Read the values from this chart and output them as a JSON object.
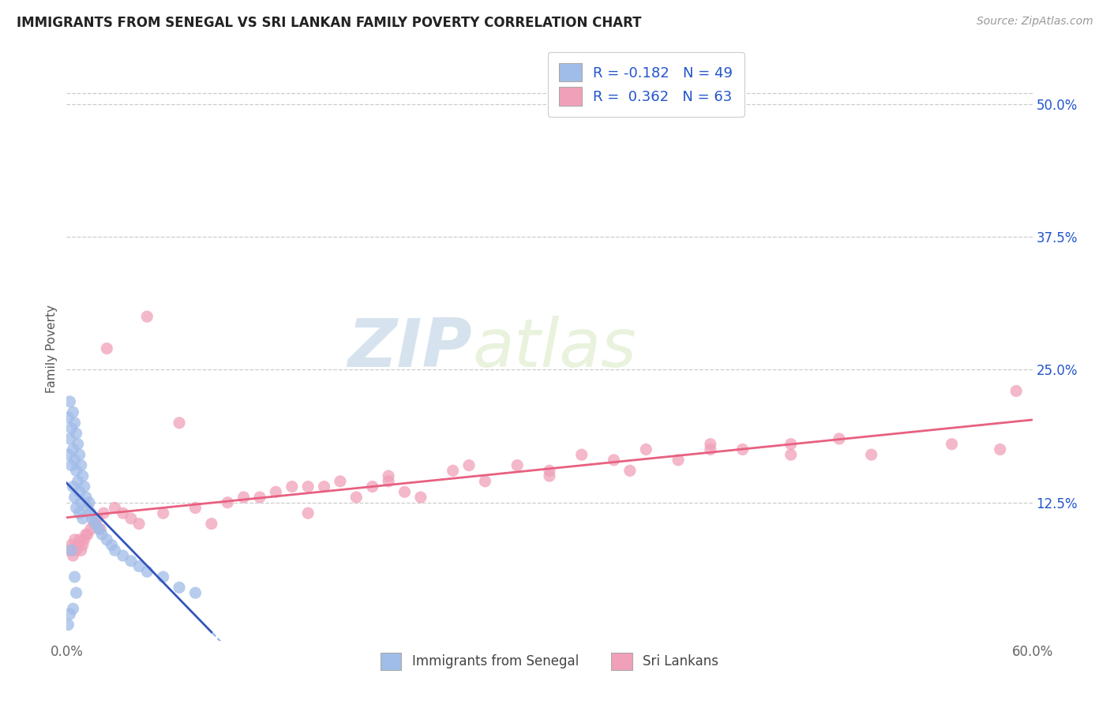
{
  "title": "IMMIGRANTS FROM SENEGAL VS SRI LANKAN FAMILY POVERTY CORRELATION CHART",
  "source": "Source: ZipAtlas.com",
  "ylabel": "Family Poverty",
  "right_ytick_labels": [
    "12.5%",
    "25.0%",
    "37.5%",
    "50.0%"
  ],
  "right_ytick_values": [
    0.125,
    0.25,
    0.375,
    0.5
  ],
  "xlim": [
    0.0,
    0.6
  ],
  "ylim": [
    -0.005,
    0.545
  ],
  "color_blue_fill": "#a0bce8",
  "color_pink_fill": "#f0a0b8",
  "color_blue_text": "#2255cc",
  "color_grid": "#cccccc",
  "trend_blue_solid_color": "#3355bb",
  "trend_blue_dash_color": "#8aafe8",
  "trend_pink_color": "#e86080",
  "legend_label_1": "Immigrants from Senegal",
  "legend_label_2": "Sri Lankans",
  "R1": "-0.182",
  "N1": "49",
  "R2": "0.362",
  "N2": "63",
  "blue_x": [
    0.001,
    0.001,
    0.002,
    0.002,
    0.003,
    0.003,
    0.004,
    0.004,
    0.004,
    0.005,
    0.005,
    0.005,
    0.006,
    0.006,
    0.006,
    0.007,
    0.007,
    0.008,
    0.008,
    0.008,
    0.009,
    0.009,
    0.01,
    0.01,
    0.011,
    0.012,
    0.013,
    0.014,
    0.015,
    0.016,
    0.018,
    0.02,
    0.022,
    0.025,
    0.028,
    0.03,
    0.035,
    0.04,
    0.045,
    0.05,
    0.06,
    0.07,
    0.08,
    0.003,
    0.005,
    0.006,
    0.004,
    0.002,
    0.001
  ],
  "blue_y": [
    0.205,
    0.17,
    0.22,
    0.185,
    0.195,
    0.16,
    0.21,
    0.175,
    0.14,
    0.2,
    0.165,
    0.13,
    0.19,
    0.155,
    0.12,
    0.18,
    0.145,
    0.17,
    0.135,
    0.115,
    0.16,
    0.125,
    0.15,
    0.11,
    0.14,
    0.13,
    0.12,
    0.125,
    0.115,
    0.11,
    0.105,
    0.1,
    0.095,
    0.09,
    0.085,
    0.08,
    0.075,
    0.07,
    0.065,
    0.06,
    0.055,
    0.045,
    0.04,
    0.08,
    0.055,
    0.04,
    0.025,
    0.02,
    0.01
  ],
  "pink_x": [
    0.002,
    0.003,
    0.004,
    0.005,
    0.006,
    0.007,
    0.008,
    0.009,
    0.01,
    0.011,
    0.012,
    0.013,
    0.015,
    0.017,
    0.019,
    0.021,
    0.023,
    0.025,
    0.03,
    0.035,
    0.04,
    0.045,
    0.05,
    0.06,
    0.07,
    0.08,
    0.09,
    0.1,
    0.11,
    0.12,
    0.13,
    0.14,
    0.15,
    0.16,
    0.17,
    0.18,
    0.19,
    0.2,
    0.21,
    0.22,
    0.24,
    0.26,
    0.28,
    0.3,
    0.32,
    0.34,
    0.36,
    0.38,
    0.4,
    0.42,
    0.45,
    0.48,
    0.5,
    0.55,
    0.58,
    0.59,
    0.15,
    0.2,
    0.25,
    0.3,
    0.35,
    0.4,
    0.45
  ],
  "pink_y": [
    0.08,
    0.085,
    0.075,
    0.09,
    0.08,
    0.085,
    0.09,
    0.08,
    0.085,
    0.09,
    0.095,
    0.095,
    0.1,
    0.105,
    0.11,
    0.1,
    0.115,
    0.27,
    0.12,
    0.115,
    0.11,
    0.105,
    0.3,
    0.115,
    0.2,
    0.12,
    0.105,
    0.125,
    0.13,
    0.13,
    0.135,
    0.14,
    0.115,
    0.14,
    0.145,
    0.13,
    0.14,
    0.15,
    0.135,
    0.13,
    0.155,
    0.145,
    0.16,
    0.155,
    0.17,
    0.165,
    0.175,
    0.165,
    0.18,
    0.175,
    0.18,
    0.185,
    0.17,
    0.18,
    0.175,
    0.23,
    0.14,
    0.145,
    0.16,
    0.15,
    0.155,
    0.175,
    0.17
  ]
}
